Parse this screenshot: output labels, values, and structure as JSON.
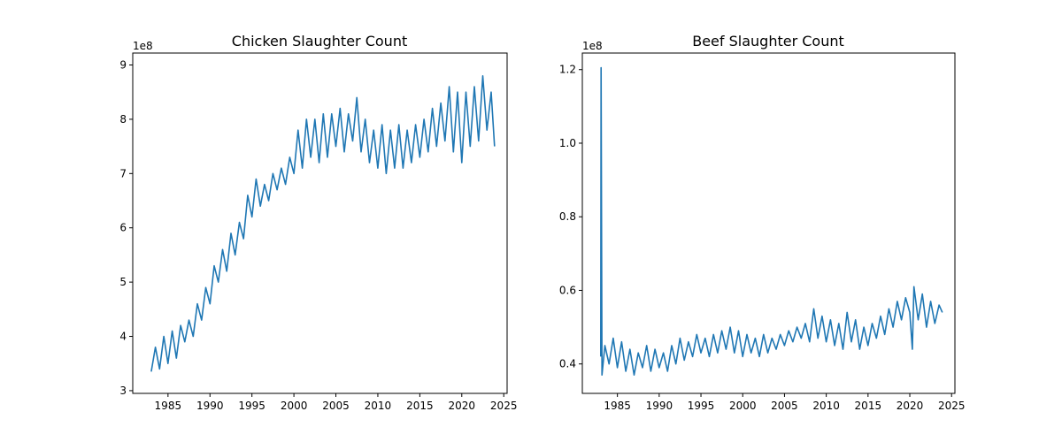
{
  "colors": {
    "series": "#1f77b4",
    "axis": "#000000",
    "background": "#ffffff"
  },
  "chart_data": [
    {
      "type": "line",
      "title": "Chicken Slaughter Count",
      "xlabel": "",
      "ylabel": "",
      "y_multiplier_label": "1e8",
      "x_ticks": [
        1985,
        1990,
        1995,
        2000,
        2005,
        2010,
        2015,
        2020,
        2025
      ],
      "y_ticks": [
        3,
        4,
        5,
        6,
        7,
        8,
        9
      ],
      "xlim": [
        1980.8,
        2025.4
      ],
      "ylim": [
        2.95,
        9.22
      ],
      "grid": false,
      "series": [
        {
          "values_note": "",
          "x": [
            1983.0,
            1983.5,
            1984.0,
            1984.5,
            1985.0,
            1985.5,
            1986.0,
            1986.5,
            1987.0,
            1987.5,
            1988.0,
            1988.5,
            1989.0,
            1989.5,
            1990.0,
            1990.5,
            1991.0,
            1991.5,
            1992.0,
            1992.5,
            1993.0,
            1993.5,
            1994.0,
            1994.5,
            1995.0,
            1995.5,
            1996.0,
            1996.5,
            1997.0,
            1997.5,
            1998.0,
            1998.5,
            1999.0,
            1999.5,
            2000.0,
            2000.5,
            2001.0,
            2001.5,
            2002.0,
            2002.5,
            2003.0,
            2003.5,
            2004.0,
            2004.5,
            2005.0,
            2005.5,
            2006.0,
            2006.5,
            2007.0,
            2007.5,
            2008.0,
            2008.5,
            2009.0,
            2009.5,
            2010.0,
            2010.5,
            2011.0,
            2011.5,
            2012.0,
            2012.5,
            2013.0,
            2013.5,
            2014.0,
            2014.5,
            2015.0,
            2015.5,
            2016.0,
            2016.5,
            2017.0,
            2017.5,
            2018.0,
            2018.5,
            2019.0,
            2019.5,
            2020.0,
            2020.5,
            2021.0,
            2021.5,
            2022.0,
            2022.5,
            2023.0,
            2023.5,
            2023.9
          ],
          "values": [
            3.35,
            3.8,
            3.4,
            4.0,
            3.5,
            4.1,
            3.6,
            4.2,
            3.9,
            4.3,
            4.0,
            4.6,
            4.3,
            4.9,
            4.6,
            5.3,
            5.0,
            5.6,
            5.2,
            5.9,
            5.5,
            6.1,
            5.8,
            6.6,
            6.2,
            6.9,
            6.4,
            6.8,
            6.5,
            7.0,
            6.7,
            7.1,
            6.8,
            7.3,
            7.0,
            7.8,
            7.1,
            8.0,
            7.3,
            8.0,
            7.2,
            8.1,
            7.3,
            8.1,
            7.5,
            8.2,
            7.4,
            8.1,
            7.6,
            8.4,
            7.4,
            8.0,
            7.2,
            7.8,
            7.1,
            7.9,
            7.0,
            7.8,
            7.1,
            7.9,
            7.1,
            7.8,
            7.2,
            7.9,
            7.3,
            8.0,
            7.4,
            8.2,
            7.5,
            8.3,
            7.6,
            8.6,
            7.4,
            8.5,
            7.2,
            8.5,
            7.5,
            8.6,
            7.6,
            8.8,
            7.8,
            8.5,
            7.5
          ]
        }
      ]
    },
    {
      "type": "line",
      "title": "Beef Slaughter Count",
      "xlabel": "",
      "ylabel": "",
      "y_multiplier_label": "1e8",
      "x_ticks": [
        1985,
        1990,
        1995,
        2000,
        2005,
        2010,
        2015,
        2020,
        2025
      ],
      "y_ticks": [
        0.4,
        0.6,
        0.8,
        1.0,
        1.2
      ],
      "y_tick_labels": [
        "0.4",
        "0.6",
        "0.8",
        "1.0",
        "1.2"
      ],
      "xlim": [
        1980.8,
        2025.4
      ],
      "ylim": [
        0.32,
        1.245
      ],
      "grid": false,
      "series": [
        {
          "x": [
            1983.0,
            1983.05,
            1983.15,
            1983.5,
            1984.0,
            1984.5,
            1985.0,
            1985.5,
            1986.0,
            1986.5,
            1987.0,
            1987.5,
            1988.0,
            1988.5,
            1989.0,
            1989.5,
            1990.0,
            1990.5,
            1991.0,
            1991.5,
            1992.0,
            1992.5,
            1993.0,
            1993.5,
            1994.0,
            1994.5,
            1995.0,
            1995.5,
            1996.0,
            1996.5,
            1997.0,
            1997.5,
            1998.0,
            1998.5,
            1999.0,
            1999.5,
            2000.0,
            2000.5,
            2001.0,
            2001.5,
            2002.0,
            2002.5,
            2003.0,
            2003.5,
            2004.0,
            2004.5,
            2005.0,
            2005.5,
            2006.0,
            2006.5,
            2007.0,
            2007.5,
            2008.0,
            2008.5,
            2009.0,
            2009.5,
            2010.0,
            2010.5,
            2011.0,
            2011.5,
            2012.0,
            2012.5,
            2013.0,
            2013.5,
            2014.0,
            2014.5,
            2015.0,
            2015.5,
            2016.0,
            2016.5,
            2017.0,
            2017.5,
            2018.0,
            2018.5,
            2019.0,
            2019.5,
            2020.0,
            2020.3,
            2020.5,
            2021.0,
            2021.5,
            2022.0,
            2022.5,
            2023.0,
            2023.5,
            2023.9
          ],
          "values": [
            0.42,
            1.205,
            0.37,
            0.45,
            0.4,
            0.47,
            0.39,
            0.46,
            0.38,
            0.44,
            0.37,
            0.43,
            0.39,
            0.45,
            0.38,
            0.44,
            0.39,
            0.43,
            0.38,
            0.45,
            0.4,
            0.47,
            0.41,
            0.46,
            0.42,
            0.48,
            0.43,
            0.47,
            0.42,
            0.48,
            0.43,
            0.49,
            0.44,
            0.5,
            0.43,
            0.49,
            0.42,
            0.48,
            0.43,
            0.47,
            0.42,
            0.48,
            0.43,
            0.47,
            0.44,
            0.48,
            0.45,
            0.49,
            0.46,
            0.5,
            0.47,
            0.51,
            0.46,
            0.55,
            0.47,
            0.53,
            0.46,
            0.52,
            0.45,
            0.51,
            0.44,
            0.54,
            0.46,
            0.52,
            0.44,
            0.5,
            0.45,
            0.51,
            0.47,
            0.53,
            0.48,
            0.55,
            0.5,
            0.57,
            0.52,
            0.58,
            0.54,
            0.44,
            0.61,
            0.52,
            0.59,
            0.5,
            0.57,
            0.51,
            0.56,
            0.54
          ]
        }
      ]
    }
  ]
}
